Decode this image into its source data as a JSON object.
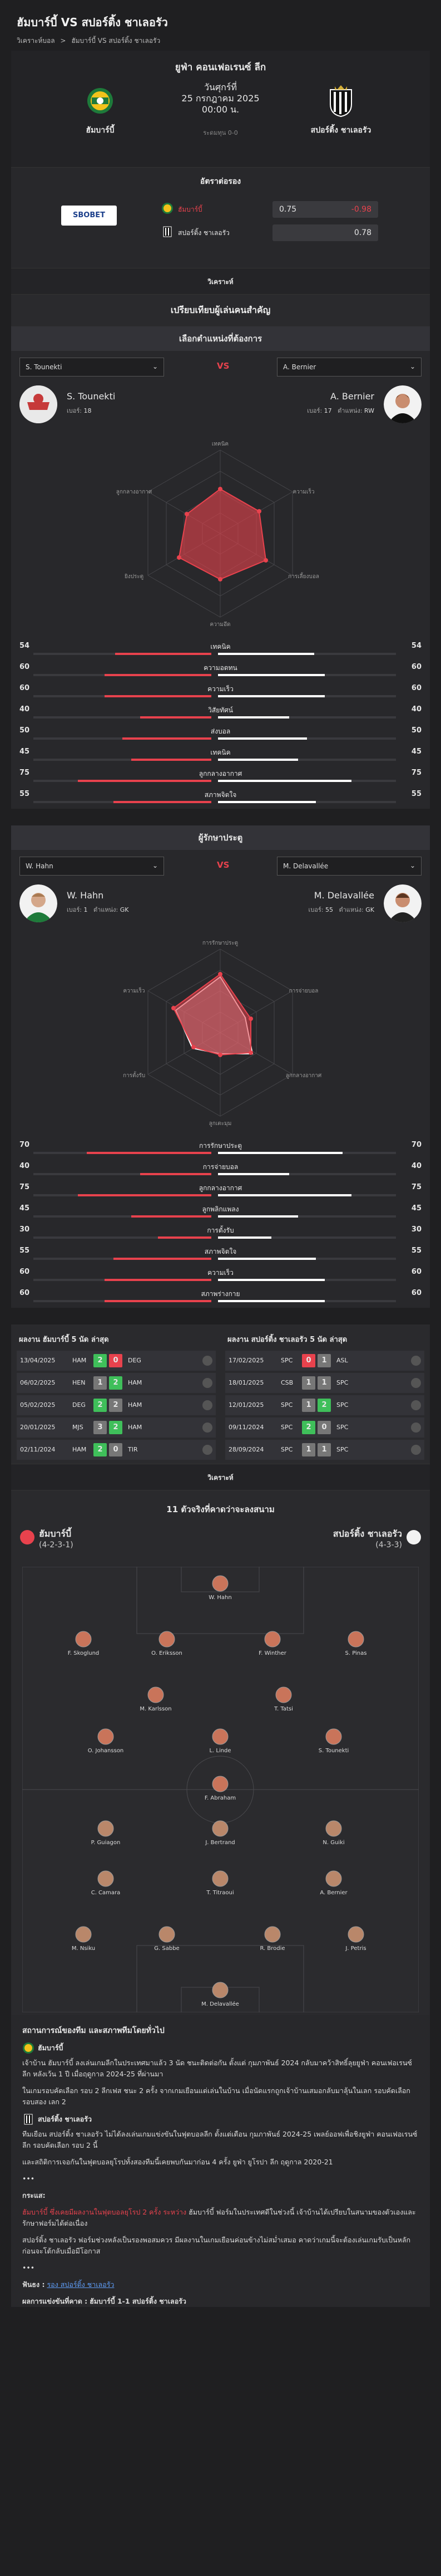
{
  "title": "ฮัมบาร์บี้ VS สปอร์ติ้ง ชาเลอรัว",
  "breadcrumb": [
    "วิเคราะห์บอล",
    ">",
    "ฮัมบาร์บี้ VS สปอร์ติ้ง ชาเลอรัว"
  ],
  "match": {
    "competition": "ยูฟ่า คอนเฟอเรนซ์ ลีก",
    "day": "วันศุกร์ที่",
    "date": "25 กรกฎาคม 2025",
    "time": "00:00 น.",
    "status_note": "ระดมทุน 0-0",
    "home": "ฮัมบาร์บี้",
    "away": "สปอร์ติ้ง ชาเลอรัว"
  },
  "odds": {
    "heading": "อัตราต่อรอง",
    "bookmaker": "SBOBET",
    "home_label": "ฮัมบาร์บี้",
    "away_label": "สปอร์ติ้ง ชาเลอรัว",
    "home_value": "0.75",
    "home_line": "-0.98",
    "away_value": "0.78"
  },
  "analysis_label": "วิเคราะห์",
  "key_heading": "เปรียบเทียบผู้เล่นคนสำคัญ",
  "cmp1": {
    "subhead": "เลือกตำแหน่งที่ต้องการ",
    "left_select": "S. Tounekti",
    "right_select": "A. Bernier",
    "vs": "VS",
    "left": {
      "name": "S. Tounekti",
      "num_label": "เบอร์:",
      "num": "18",
      "pos_label": "",
      "pos": ""
    },
    "right": {
      "name": "A. Bernier",
      "num_label": "เบอร์:",
      "num": "17",
      "pos_label": "ตำแหน่ง:",
      "pos": "RW"
    },
    "radar_labels": [
      "เทคนิค",
      "ความเร็ว",
      "การเลี้ยงบอล",
      "ความอึด",
      "ยิงประตู",
      "ลูกกลางอากาศ"
    ],
    "stats": [
      {
        "label": "เทคนิค",
        "l": 54,
        "r": 54
      },
      {
        "label": "ความอดทน",
        "l": 60,
        "r": 60
      },
      {
        "label": "ความเร็ว",
        "l": 60,
        "r": 60
      },
      {
        "label": "วิสัยทัศน์",
        "l": 40,
        "r": 40
      },
      {
        "label": "ส่งบอล",
        "l": 50,
        "r": 50
      },
      {
        "label": "เทคนิค",
        "l": 45,
        "r": 45
      },
      {
        "label": "ลูกกลางอากาศ",
        "l": 75,
        "r": 75
      },
      {
        "label": "สภาพจิตใจ",
        "l": 55,
        "r": 55
      }
    ]
  },
  "cmp2": {
    "subhead": "ผู้รักษาประตู",
    "left_select": "W. Hahn",
    "right_select": "M. Delavallée",
    "vs": "VS",
    "left": {
      "name": "W. Hahn",
      "num_label": "เบอร์:",
      "num": "1",
      "pos_label": "ตำแหน่ง:",
      "pos": "GK"
    },
    "right": {
      "name": "M. Delavallée",
      "num_label": "เบอร์:",
      "num": "55",
      "pos_label": "ตำแหน่ง:",
      "pos": "GK"
    },
    "radar_labels": [
      "การรักษาประตู",
      "การจ่ายบอล",
      "ลูกกลางอากาศ",
      "ลูกเตะมุม",
      "การตั้งรับ",
      "ความเร็ว"
    ],
    "stats": [
      {
        "label": "การรักษาประตู",
        "l": 70,
        "r": 70
      },
      {
        "label": "การจ่ายบอล",
        "l": 40,
        "r": 40
      },
      {
        "label": "ลูกกลางอากาศ",
        "l": 75,
        "r": 75
      },
      {
        "label": "ลูกพลิกแพลง",
        "l": 45,
        "r": 45
      },
      {
        "label": "การตั้งรับ",
        "l": 30,
        "r": 30
      },
      {
        "label": "สภาพจิตใจ",
        "l": 55,
        "r": 55
      },
      {
        "label": "ความเร็ว",
        "l": 60,
        "r": 60
      },
      {
        "label": "สภาพร่างกาย",
        "l": 60,
        "r": 60
      }
    ]
  },
  "form": {
    "home_title": "ผลงาน ฮัมบาร์บี้ 5 นัด ล่าสุด",
    "away_title": "ผลงาน สปอร์ติ้ง ชาเลอรัว 5 นัด ล่าสุด",
    "home_rows": [
      {
        "date": "13/04/2025",
        "team": "HAM",
        "s1": "2",
        "s2": "0",
        "opp": "DEG",
        "c1": "#3fbf5a",
        "c2": "#e8424d"
      },
      {
        "date": "06/02/2025",
        "team": "HEN",
        "s1": "1",
        "s2": "2",
        "opp": "HAM",
        "c1": "#777",
        "c2": "#3fbf5a"
      },
      {
        "date": "05/02/2025",
        "team": "DEG",
        "s1": "2",
        "s2": "2",
        "opp": "HAM",
        "c1": "#3fbf5a",
        "c2": "#777"
      },
      {
        "date": "20/01/2025",
        "team": "MJS",
        "s1": "3",
        "s2": "2",
        "opp": "HAM",
        "c1": "#777",
        "c2": "#3fbf5a"
      },
      {
        "date": "02/11/2024",
        "team": "HAM",
        "s1": "2",
        "s2": "0",
        "opp": "TIR",
        "c1": "#3fbf5a",
        "c2": "#777"
      }
    ],
    "away_rows": [
      {
        "date": "17/02/2025",
        "team": "SPC",
        "s1": "0",
        "s2": "1",
        "opp": "ASL",
        "c1": "#e8424d",
        "c2": "#777"
      },
      {
        "date": "18/01/2025",
        "team": "CSB",
        "s1": "1",
        "s2": "1",
        "opp": "SPC",
        "c1": "#777",
        "c2": "#777"
      },
      {
        "date": "12/01/2025",
        "team": "SPC",
        "s1": "1",
        "s2": "2",
        "opp": "SPC",
        "c1": "#777",
        "c2": "#3fbf5a"
      },
      {
        "date": "09/11/2024",
        "team": "SPC",
        "s1": "2",
        "s2": "0",
        "opp": "SPC",
        "c1": "#3fbf5a",
        "c2": "#777"
      },
      {
        "date": "28/09/2024",
        "team": "SPC",
        "s1": "1",
        "s2": "1",
        "opp": "SPC",
        "c1": "#777",
        "c2": "#777"
      }
    ]
  },
  "lineup": {
    "section": "วิเคราะห์",
    "heading": "11 ตัวจริงที่คาดว่าจะลงสนาม",
    "home": "ฮัมบาร์บี้",
    "home_form": "(4-2-3-1)",
    "away": "สปอร์ติ้ง ชาเลอรัว",
    "away_form": "(4-3-3)",
    "home_players": [
      {
        "n": "W. Hahn"
      },
      {
        "n": "F. Skoglund"
      },
      {
        "n": "O. Eriksson"
      },
      {
        "n": "F. Winther"
      },
      {
        "n": "S. Pinas"
      },
      {
        "n": "M. Karlsson"
      },
      {
        "n": "T. Tatsi"
      },
      {
        "n": "O. Johansson"
      },
      {
        "n": "L. Linde"
      },
      {
        "n": "S. Tounekti"
      },
      {
        "n": "F. Abraham"
      }
    ],
    "away_players": [
      {
        "n": "P. Guiagon"
      },
      {
        "n": "J. Bertrand"
      },
      {
        "n": "N. Guiki"
      },
      {
        "n": "C. Camara"
      },
      {
        "n": "T. Titraoui"
      },
      {
        "n": "A. Bernier"
      },
      {
        "n": "M. Nsiku"
      },
      {
        "n": "G. Sabbe"
      },
      {
        "n": "R. Brodie"
      },
      {
        "n": "J. Petris"
      },
      {
        "n": "M. Delavallée"
      }
    ]
  },
  "news": {
    "heading": "สถานการณ์ของทีม และสภาพทีมโดยทั่วไป",
    "home_team": "ฮัมบาร์บี้",
    "home_p1": "เจ้าบ้าน ฮัมบาร์บี้ ลงเล่นเกมลีกในประเทศมาแล้ว 3 นัด ชนะติดต่อกัน ตั้งแต่ กุมภาพันธ์ 2024 กลับมาคว้าสิทธิ์ลุยยูฟ่า คอนเฟอเรนซ์ ลีก หลังเว้น 1 ปี เมื่อฤดูกาล 2024-25 ที่ผ่านมา",
    "home_p2": "ในเกมรอบคัดเลือก รอบ 2 ลีกเฟส ชนะ 2 ครั้ง จากเกมเยือนแต่เล่นในบ้าน เมื่อนัดแรกถูกเจ้าบ้านเสมอกลับมาลุ้นในเลก รอบคัดเลือก รอบสอง เลก 2",
    "away_team": "สปอร์ติ้ง ชาเลอรัว",
    "away_p1": "ทีมเยือน สปอร์ติ้ง ชาเลอรัว ไม่ได้ลงเล่นเกมแข่งขันในฟุตบอลลีก ตั้งแต่เดือน กุมภาพันธ์ 2024-25 เพลย์ออฟเพื่อชิงยูฟ่า คอนเฟอเรนซ์ ลีก รอบคัดเลือก รอบ 2 นี้",
    "away_p2": "และสถิติการเจอกันในฟุตบอลยุโรปทั้งสองทีมนี้เคยพบกันมาก่อน 4 ครั้ง ยูฟ่า ยูโรปา ลีก ฤดูกาล 2020-21",
    "dots": "•••",
    "analysis_h": "กระแส:",
    "analysis_red": "ฮัมบาร์บี้ ซึ่งเคยมีผลงานในฟุตบอลยุโรป 2 ครั้ง ระหว่าง",
    "analysis_p": "ฮัมบาร์บี้ ฟอร์มในประเทศดีในช่วงนี้ เจ้าบ้านได้เปรียบในสนามของตัวเองและรักษาฟอร์มได้ต่อเนื่อง",
    "analysis_p2": "สปอร์ติ้ง ชาเลอรัว ฟอร์มช่วงหลังเป็นรองพอสมควร มีผลงานในเกมเยือนค่อนข้างไม่สม่ำเสมอ คาดว่าเกมนี้จะต้องเล่นเกมรับเป็นหลัก ก่อนจะโต้กลับเมื่อมีโอกาส",
    "pick_label": "ฟันธง :",
    "pick": "รอง สปอร์ติ้ง ชาเลอรัว",
    "score_label": "ผลการแข่งขันที่คาด :",
    "score": "ฮัมบาร์บี้ 1-1 สปอร์ติ้ง ชาเลอรัว"
  },
  "colors": {
    "accent": "#e8424d",
    "bg": "#1f1f21",
    "panel": "#2a2a2d"
  }
}
